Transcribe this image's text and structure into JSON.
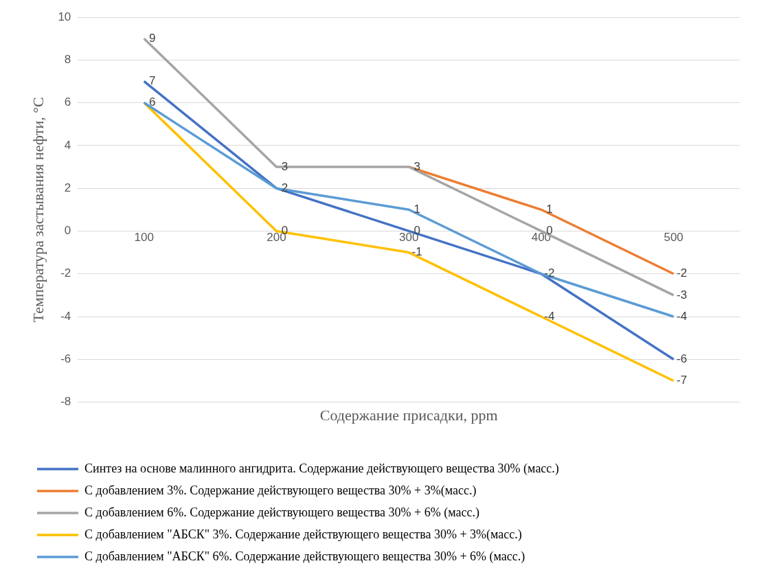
{
  "chart_data": {
    "type": "line",
    "xlabel": "Содержание присадки, ppm",
    "ylabel": "Температура застывания нефти, °C",
    "categories": [
      "100",
      "200",
      "300",
      "400",
      "500"
    ],
    "series": [
      {
        "name": "Синтез на основе малинного ангидрита. Содержание действующего вещества 30% (масс.)",
        "color": "#4472c4",
        "values": [
          7,
          2,
          0,
          -2,
          -6
        ],
        "value_labels": [
          "7",
          "2",
          "0",
          "-2",
          "-6"
        ]
      },
      {
        "name": "С добавлением 3%. Содержание действующего вещества 30% + 3%(масс.)",
        "color": "#ed7d31",
        "values": [
          null,
          null,
          3,
          1,
          -2
        ],
        "value_labels": [
          null,
          null,
          null,
          "1",
          "-2"
        ]
      },
      {
        "name": "С добавлением 6%. Содержание действующего вещества 30% + 6% (масс.)",
        "color": "#a5a5a5",
        "values": [
          9,
          3,
          3,
          0,
          -3
        ],
        "value_labels": [
          "9",
          "3",
          "3",
          "0",
          "-3"
        ]
      },
      {
        "name": "С добавлением \"АБСК\" 3%. Содержание действующего вещества 30% + 3%(масс.)",
        "color": "#ffc000",
        "values": [
          6,
          0,
          -1,
          -4,
          -7
        ],
        "value_labels": [
          "6",
          "0",
          "-1",
          "-4",
          "-7"
        ]
      },
      {
        "name": "С добавлением \"АБСК\" 6%. Содержание действующего вещества 30% + 6% (масс.)",
        "color": "#5b9bd5",
        "values": [
          6,
          2,
          1,
          -2,
          -4
        ],
        "value_labels": [
          null,
          null,
          "1",
          null,
          "-4"
        ]
      }
    ],
    "ylim": [
      -8,
      10
    ],
    "yticks": [
      -8,
      -6,
      -4,
      -2,
      0,
      2,
      4,
      6,
      8,
      10
    ],
    "grid": "y",
    "legend": "bottom",
    "marker": "none",
    "line_style": "solid"
  }
}
